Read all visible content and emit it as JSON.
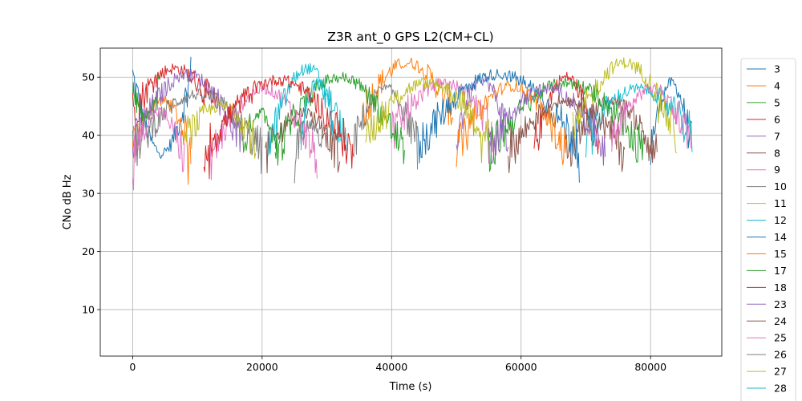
{
  "chart_data": {
    "type": "line",
    "title": "Z3R ant_0 GPS L2(CM+CL)",
    "xlabel": "Time (s)",
    "ylabel": "CNo dB Hz",
    "xlim": [
      -5000,
      91000
    ],
    "ylim": [
      2,
      55
    ],
    "xticks": [
      0,
      20000,
      40000,
      60000,
      80000
    ],
    "yticks": [
      10,
      20,
      30,
      40,
      50
    ],
    "grid": true,
    "legend_position": "right-outside",
    "series": [
      {
        "name": "3",
        "color": "#1f77b4",
        "arcs": [
          [
            0,
            9000,
            50.0,
            37
          ],
          [
            80000,
            86400,
            38,
            49
          ]
        ]
      },
      {
        "name": "4",
        "color": "#ff7f0e",
        "arcs": [
          [
            0,
            9000,
            38,
            46
          ],
          [
            35500,
            49500,
            44,
            52.5
          ]
        ]
      },
      {
        "name": "5",
        "color": "#2ca02c",
        "arcs": [
          [
            0,
            4000,
            48.5,
            43
          ],
          [
            17000,
            22500,
            38,
            44
          ]
        ]
      },
      {
        "name": "6",
        "color": "#d62728",
        "arcs": [
          [
            0,
            13000,
            44,
            51.5
          ],
          [
            62000,
            72000,
            38,
            50
          ]
        ]
      },
      {
        "name": "7",
        "color": "#9467bd",
        "arcs": [
          [
            0,
            17000,
            38,
            50.5
          ],
          [
            50000,
            58000,
            40,
            49.5
          ]
        ]
      },
      {
        "name": "8",
        "color": "#8c564b",
        "arcs": [
          [
            20500,
            32000,
            36,
            44
          ],
          [
            67000,
            81000,
            36,
            46
          ]
        ]
      },
      {
        "name": "9",
        "color": "#e377c2",
        "arcs": [
          [
            12000,
            28500,
            36,
            48
          ],
          [
            40000,
            56000,
            40,
            49
          ]
        ]
      },
      {
        "name": "10",
        "color": "#7f7f7f",
        "arcs": [
          [
            0,
            20000,
            37,
            47
          ],
          [
            34000,
            44000,
            38,
            48
          ]
        ]
      },
      {
        "name": "11",
        "color": "#bcbd22",
        "arcs": [
          [
            8000,
            19000,
            39,
            45
          ],
          [
            68000,
            84000,
            40,
            52.5
          ]
        ]
      },
      {
        "name": "12",
        "color": "#17becf",
        "arcs": [
          [
            21000,
            33000,
            38,
            51.5
          ],
          [
            70000,
            86400,
            40,
            48
          ]
        ]
      },
      {
        "name": "14",
        "color": "#1f77b4",
        "arcs": [
          [
            44000,
            69000,
            38,
            50.5
          ]
        ]
      },
      {
        "name": "15",
        "color": "#ff7f0e",
        "arcs": [
          [
            50000,
            67000,
            37,
            48.5
          ]
        ]
      },
      {
        "name": "17",
        "color": "#2ca02c",
        "arcs": [
          [
            22000,
            42000,
            37,
            50
          ],
          [
            55000,
            79000,
            37,
            49
          ]
        ]
      },
      {
        "name": "18",
        "color": "#d62728",
        "arcs": [
          [
            11000,
            34000,
            37,
            49.5
          ]
        ]
      },
      {
        "name": "23",
        "color": "#9467bd",
        "arcs": [
          [
            55000,
            73000,
            38,
            48
          ]
        ]
      },
      {
        "name": "24",
        "color": "#8c564b",
        "arcs": [
          [
            58000,
            76000,
            37,
            46
          ]
        ]
      },
      {
        "name": "25",
        "color": "#e377c2",
        "arcs": [
          [
            0,
            8000,
            36,
            44
          ],
          [
            74000,
            86400,
            39,
            48
          ]
        ]
      },
      {
        "name": "26",
        "color": "#7f7f7f",
        "arcs": [
          [
            25000,
            30000,
            37,
            42
          ]
        ]
      },
      {
        "name": "27",
        "color": "#bcbd22",
        "arcs": [
          [
            36000,
            55000,
            40,
            49
          ]
        ]
      },
      {
        "name": "28",
        "color": "#17becf",
        "arcs": [
          [
            26000,
            31000,
            40,
            49
          ]
        ]
      }
    ]
  }
}
